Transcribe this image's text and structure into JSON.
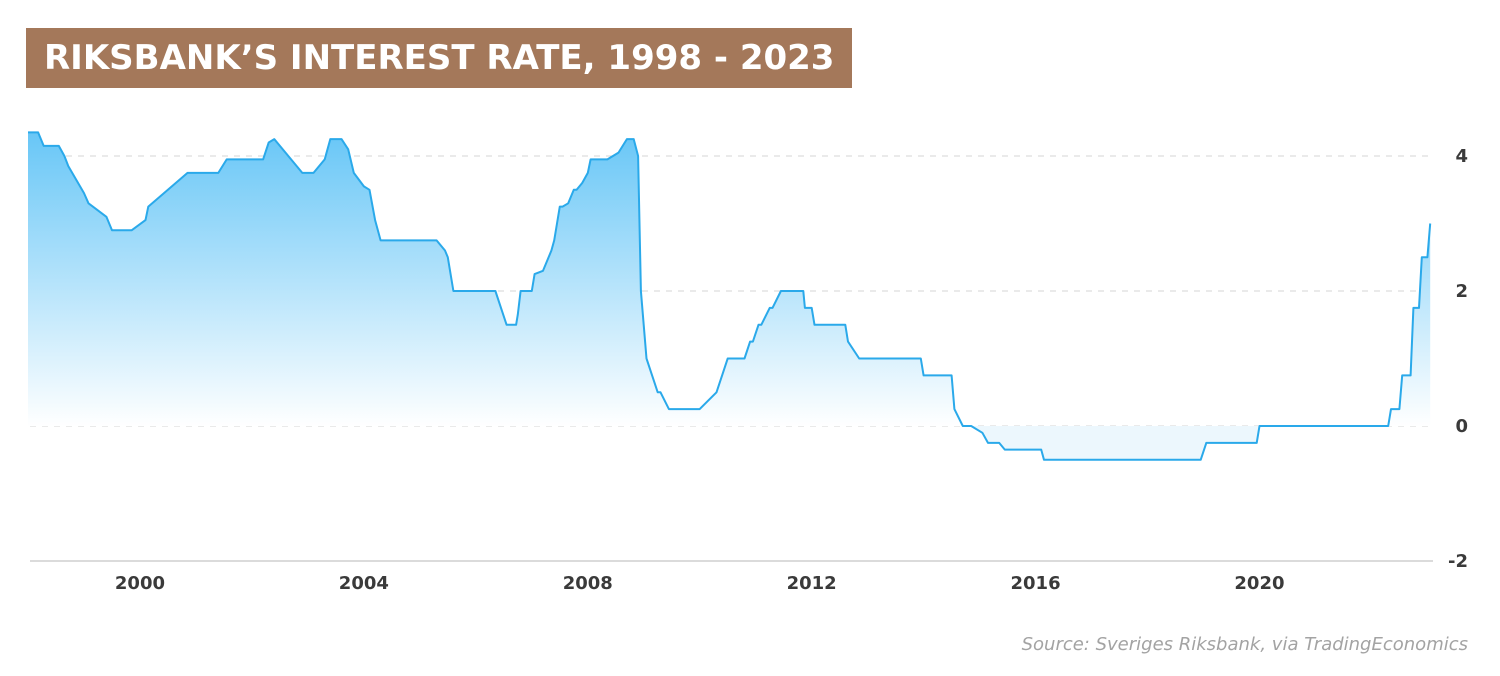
{
  "chart_data": {
    "type": "area",
    "title": "RIKSBANK’S INTEREST RATE, 1998 - 2023",
    "source": "Source: Sveriges Riksbank, via TradingEconomics",
    "xlabel": "",
    "ylabel": "",
    "xlim": [
      1998.0,
      2023.1
    ],
    "ylim": [
      -2,
      4.5
    ],
    "x_ticks": [
      2000,
      2004,
      2008,
      2012,
      2016,
      2020
    ],
    "x_tick_labels": [
      "2000",
      "2004",
      "2008",
      "2012",
      "2016",
      "2020"
    ],
    "y_ticks": [
      4,
      2,
      0,
      -2
    ],
    "y_tick_labels": [
      "4",
      "2",
      "0",
      "-2"
    ],
    "grid": "horizontal dashed",
    "colors": {
      "line": "#2aa9ea",
      "fill_top": "#5fc3f6",
      "fill_bottom": "#ffffff",
      "banner": "#a4785a",
      "zero_fill": "#eaf6fd"
    },
    "series": [
      {
        "x": [
          1998.0,
          1998.18,
          1998.28,
          1998.55,
          1998.65,
          1998.72,
          1999.0,
          1999.08,
          1999.4,
          1999.5,
          1999.6,
          1999.65,
          1999.75,
          1999.85,
          2000.1,
          2000.15,
          2000.85,
          2000.92,
          2001.4,
          2001.55,
          2001.7,
          2002.2,
          2002.3,
          2002.4,
          2002.9,
          2003.0,
          2003.1,
          2003.2,
          2003.3,
          2003.4,
          2003.5,
          2003.55,
          2003.6,
          2003.72,
          2003.82,
          2004.0,
          2004.1,
          2004.2,
          2004.3,
          2005.25,
          2005.3,
          2005.45,
          2005.5,
          2005.6,
          2005.88,
          2005.95,
          2006.05,
          2006.1,
          2006.35,
          2006.45,
          2006.55,
          2006.6,
          2006.72,
          2006.75,
          2006.8,
          2007.0,
          2007.05,
          2007.2,
          2007.3,
          2007.35,
          2007.4,
          2007.45,
          2007.5,
          2007.55,
          2007.65,
          2007.75,
          2007.8,
          2007.9,
          2008.0,
          2008.05,
          2008.35,
          2008.55,
          2008.7,
          2008.82,
          2008.9,
          2008.95,
          2009.05,
          2009.15,
          2009.25,
          2009.3,
          2009.45,
          2009.55,
          2010.0,
          2010.3,
          2010.4,
          2010.5,
          2010.8,
          2010.9,
          2010.95,
          2011.05,
          2011.1,
          2011.25,
          2011.3,
          2011.45,
          2011.48,
          2011.85,
          2011.88,
          2012.0,
          2012.05,
          2012.6,
          2012.65,
          2012.85,
          2012.9,
          2013.95,
          2014.0,
          2014.5,
          2014.55,
          2014.7,
          2014.85,
          2015.05,
          2015.15,
          2015.35,
          2015.45,
          2016.1,
          2016.15,
          2018.95,
          2019.05,
          2019.95,
          2020.0,
          2022.3,
          2022.35,
          2022.5,
          2022.55,
          2022.7,
          2022.75,
          2022.85,
          2022.9,
          2023.0,
          2023.05
        ],
        "values": [
          4.35,
          4.35,
          4.15,
          4.15,
          4.0,
          3.85,
          3.45,
          3.3,
          3.1,
          2.9,
          2.9,
          2.9,
          2.9,
          2.9,
          3.05,
          3.25,
          3.75,
          3.75,
          3.75,
          3.95,
          3.95,
          3.95,
          4.2,
          4.25,
          3.75,
          3.75,
          3.75,
          3.85,
          3.95,
          4.25,
          4.25,
          4.25,
          4.25,
          4.1,
          3.75,
          3.55,
          3.5,
          3.05,
          2.75,
          2.75,
          2.75,
          2.6,
          2.5,
          2.0,
          2.0,
          2.0,
          2.0,
          2.0,
          2.0,
          1.75,
          1.5,
          1.5,
          1.5,
          1.65,
          2.0,
          2.0,
          2.25,
          2.3,
          2.5,
          2.6,
          2.75,
          3.0,
          3.25,
          3.25,
          3.3,
          3.5,
          3.5,
          3.6,
          3.75,
          3.95,
          3.95,
          4.05,
          4.25,
          4.25,
          4.0,
          2.0,
          1.0,
          0.75,
          0.5,
          0.5,
          0.25,
          0.25,
          0.25,
          0.5,
          0.75,
          1.0,
          1.0,
          1.25,
          1.25,
          1.5,
          1.5,
          1.75,
          1.75,
          2.0,
          2.0,
          2.0,
          1.75,
          1.75,
          1.5,
          1.5,
          1.25,
          1.0,
          1.0,
          1.0,
          0.75,
          0.75,
          0.25,
          0.0,
          0.0,
          -0.1,
          -0.25,
          -0.25,
          -0.35,
          -0.35,
          -0.5,
          -0.5,
          -0.25,
          -0.25,
          0.0,
          0.0,
          0.25,
          0.25,
          0.75,
          0.75,
          1.75,
          1.75,
          2.5,
          2.5,
          3.0
        ]
      }
    ]
  }
}
